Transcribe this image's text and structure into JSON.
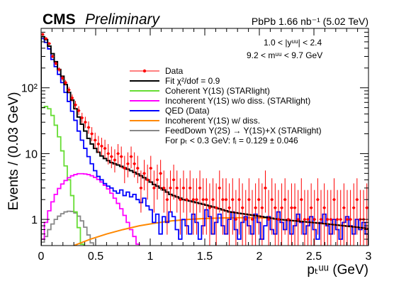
{
  "header": {
    "experiment": "CMS",
    "status": "Preliminary",
    "lumi": "PbPb 1.66 nb⁻¹ (5.02 TeV)"
  },
  "annotations": {
    "rapidity_cut": "1.0 < |yᵘᵘ| < 2.4",
    "mass_cut": "9.2 < mᵘᵘ < 9.7 GeV",
    "fi_text": "For pₜ < 0.3 GeV: fᵢ = 0.129   ± 0.046"
  },
  "chart_data": {
    "type": "line",
    "xlabel": "pₜᵘᵘ (GeV)",
    "ylabel": "Events / (0.03 GeV)",
    "xlim": [
      0,
      3
    ],
    "ylim": [
      0.4,
      800
    ],
    "y_scale": "log",
    "x_ticks": [
      "0",
      "0.5",
      "1",
      "1.5",
      "2",
      "2.5",
      "3"
    ],
    "y_ticks": [
      "1",
      "10",
      "10²"
    ],
    "bin_width": 0.03,
    "legend_position": "top-right",
    "series": [
      {
        "name": "Data",
        "style": "points",
        "color": "#ff0000",
        "values": [
          650,
          560,
          470,
          300,
          235,
          190,
          140,
          120,
          93,
          70,
          55,
          45,
          35,
          30,
          25,
          20,
          16,
          14,
          13,
          12,
          10,
          9,
          8,
          10,
          9,
          6,
          7,
          9,
          7,
          6,
          3,
          5,
          4,
          6,
          3,
          4,
          5,
          3,
          2,
          3,
          4,
          3,
          2,
          3,
          2,
          3,
          2,
          2,
          3,
          2,
          2,
          1.5,
          2,
          1.5,
          3,
          2,
          2,
          1.5,
          2,
          1,
          2,
          1.5,
          1,
          2,
          1,
          1.5,
          2,
          1.5,
          3,
          1,
          2,
          1.5,
          1,
          1.5,
          2,
          1,
          1.5,
          1.5,
          1,
          2,
          1,
          1,
          1.5,
          1,
          2,
          1,
          1.5,
          1,
          1,
          2,
          1,
          1,
          1.5,
          1,
          1,
          1.5,
          2,
          1,
          1,
          1.5
        ]
      },
      {
        "name": "Fit  χ²/dof = 0.9",
        "style": "histogram",
        "color": "#000000",
        "values": [
          600,
          540,
          430,
          330,
          250,
          190,
          150,
          112,
          85,
          65,
          48,
          36,
          28,
          22,
          17,
          14,
          12,
          10.5,
          9.2,
          8.4,
          7.8,
          7.3,
          7,
          6.7,
          6.4,
          6.1,
          5.8,
          5.5,
          5.2,
          4.9,
          4.6,
          4.3,
          4,
          3.7,
          3.4,
          3.2,
          3,
          2.8,
          2.6,
          2.4,
          2.3,
          2.2,
          2.1,
          2,
          1.95,
          1.9,
          1.85,
          1.8,
          1.75,
          1.7,
          1.65,
          1.6,
          1.55,
          1.5,
          1.45,
          1.4,
          1.35,
          1.3,
          1.28,
          1.26,
          1.24,
          1.22,
          1.2,
          1.18,
          1.16,
          1.14,
          1.12,
          1.1,
          1.08,
          1.06,
          1.04,
          1.02,
          1,
          0.99,
          0.98,
          0.97,
          0.96,
          0.95,
          0.94,
          0.93,
          0.92,
          0.91,
          0.9,
          0.89,
          0.88,
          0.87,
          0.86,
          0.85,
          0.84,
          0.83,
          0.82,
          0.81,
          0.8,
          0.79,
          0.78,
          0.77,
          0.76,
          0.75,
          0.74,
          0.73
        ]
      },
      {
        "name": "Coherent Υ(1S) (STARlight)",
        "style": "histogram",
        "color": "#66dd33",
        "values": [
          50,
          52,
          48,
          38,
          27,
          18,
          11,
          6.5,
          4,
          2.3,
          1.3,
          0.75,
          0.42
        ]
      },
      {
        "name": "Incoherent Υ(1S) w/o diss. (STARlight)",
        "style": "histogram",
        "color": "#ff00ff",
        "values": [
          0.5,
          0.9,
          1.35,
          1.85,
          2.4,
          2.95,
          3.45,
          3.9,
          4.3,
          4.6,
          4.8,
          4.95,
          4.95,
          4.9,
          4.8,
          4.6,
          4.35,
          4.05,
          3.7,
          3.3,
          2.9,
          2.5,
          2.1,
          1.75,
          1.45,
          1.15,
          0.9,
          0.7,
          0.55,
          0.42
        ]
      },
      {
        "name": "QED (Data)",
        "style": "histogram",
        "color": "#0000ff",
        "values": [
          560,
          490,
          390,
          270,
          210,
          160,
          120,
          85,
          62,
          44,
          32,
          22,
          16,
          12,
          9,
          7,
          5.5,
          4.5,
          4,
          3.5,
          3.2,
          3,
          2.7,
          2.5,
          2.8,
          2.3,
          2.6,
          2.2,
          2.4,
          2,
          1.8,
          2.1,
          1.6,
          1.4,
          0.9,
          1.2,
          0.6,
          1.1,
          0.9,
          1.3,
          1.1,
          0.7,
          0.5,
          1,
          0.8,
          0.6,
          1.2,
          0.9,
          0.5,
          0.8,
          1.4,
          1.1,
          0.6,
          0.9,
          1.2,
          0.8,
          0.6,
          1,
          1.3,
          0.7,
          0.5,
          0.9,
          1.1,
          0.8,
          0.6,
          1.2,
          0.9,
          0.5,
          0.8,
          1.1,
          0.7,
          0.6,
          1.3,
          0.9,
          0.7,
          1,
          0.6,
          0.8,
          1.2,
          0.9,
          0.6,
          0.8,
          1.1,
          0.7,
          0.5,
          0.9,
          1.2,
          0.8,
          0.6,
          1,
          0.7,
          0.5,
          0.9,
          1.1,
          0.8,
          0.6,
          1,
          0.7,
          0.9,
          0.6
        ]
      },
      {
        "name": "Incoherent Υ(1S) w/ diss.",
        "style": "curve",
        "color": "#ff8800",
        "x": [
          0.3,
          0.45,
          0.6,
          0.75,
          0.9,
          1.05,
          1.2,
          1.35,
          1.5,
          1.65,
          1.8,
          1.95,
          2.1
        ],
        "values": [
          0.4,
          0.5,
          0.6,
          0.7,
          0.8,
          0.88,
          0.95,
          1.0,
          1.03,
          1.05,
          1.06,
          1.06,
          1.05
        ]
      },
      {
        "name": "FeedDown Υ(2S) → Υ(1S)+X (STARlight)",
        "style": "histogram",
        "color": "#888888",
        "values": [
          0.45,
          0.55,
          0.7,
          0.85,
          1.0,
          1.12,
          1.22,
          1.3,
          1.33,
          1.32,
          1.25,
          1.12,
          0.95,
          0.76,
          0.58,
          0.44
        ]
      }
    ]
  }
}
